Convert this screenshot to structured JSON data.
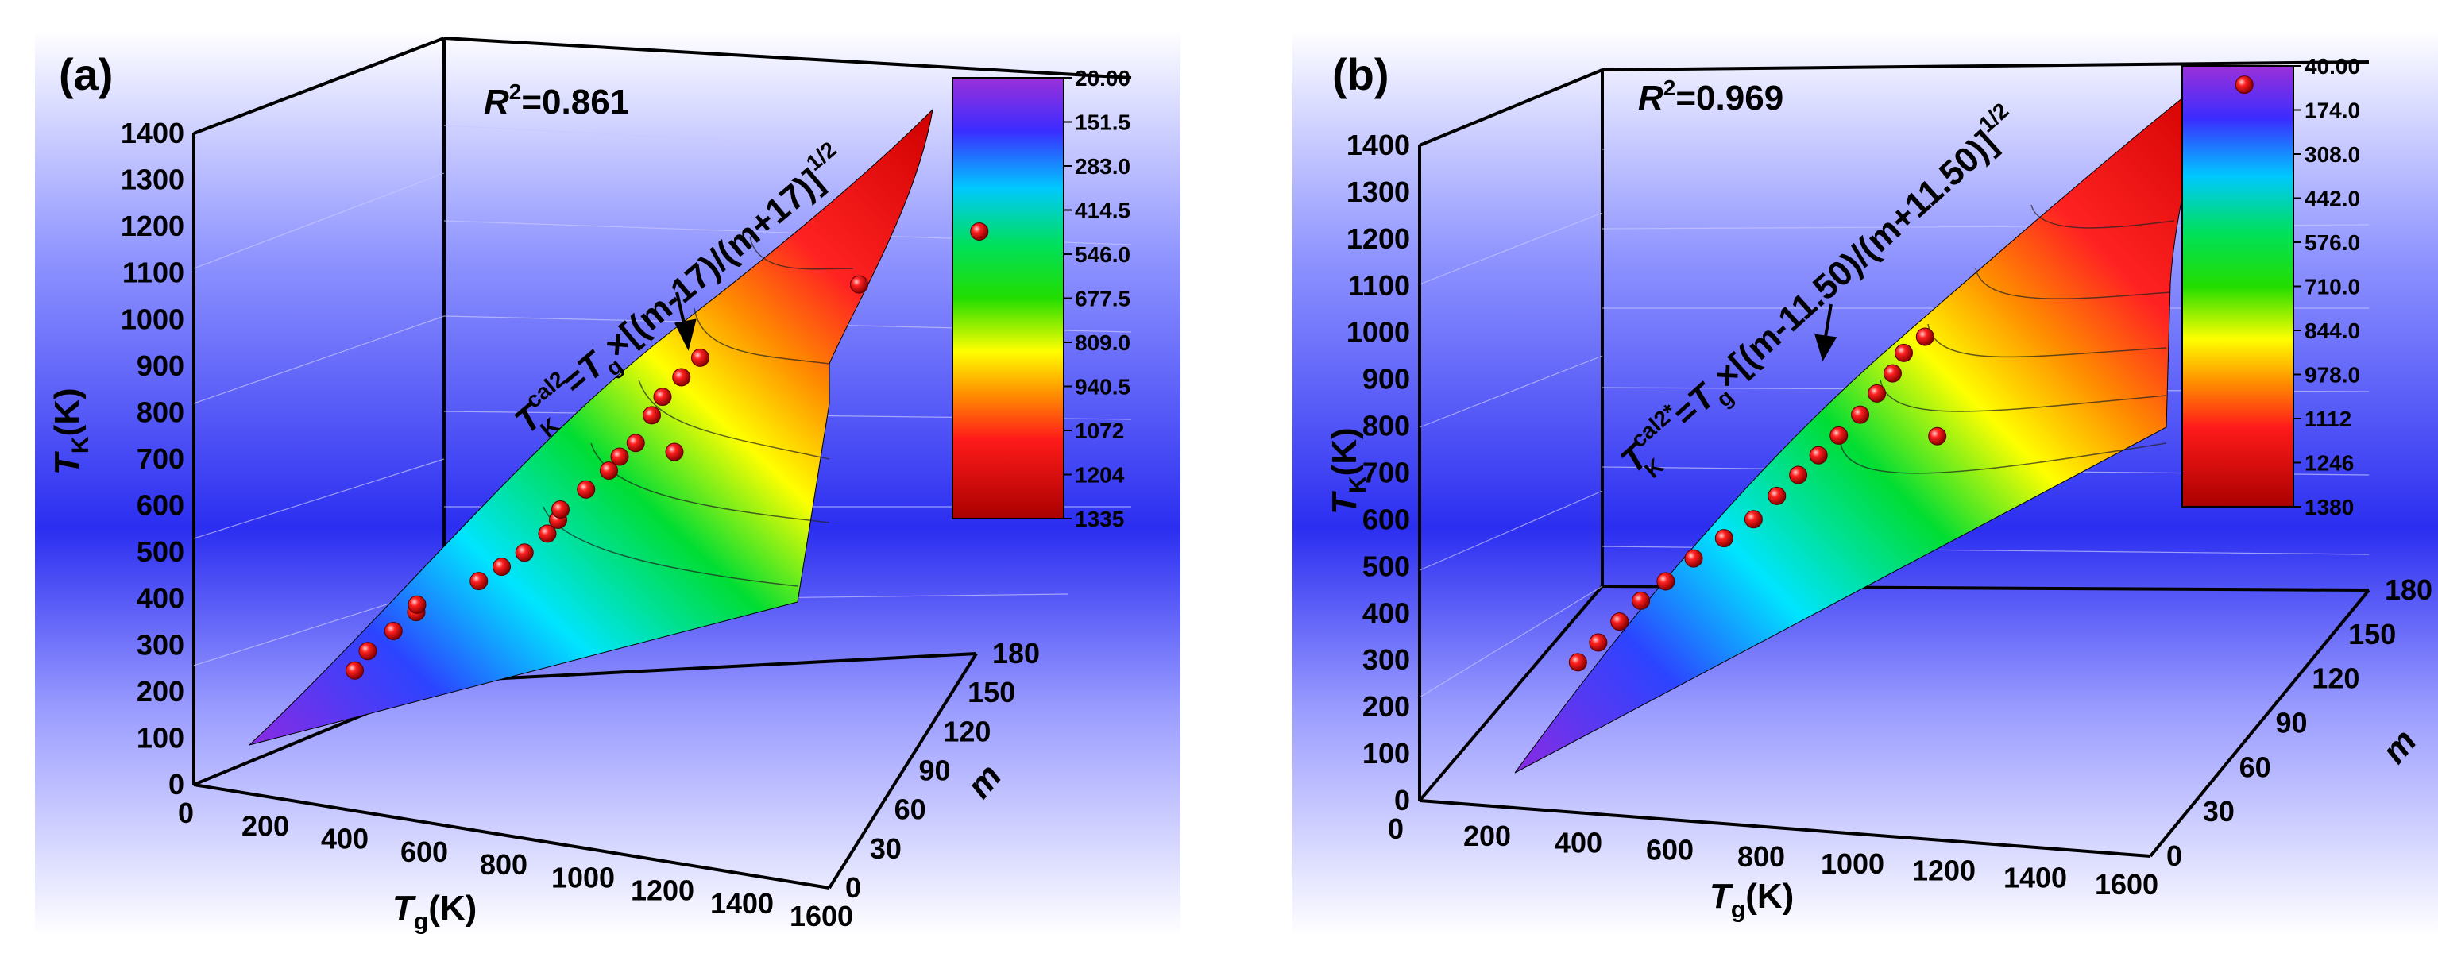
{
  "chart_data": [
    {
      "type": "surface3d",
      "panel_label": "(a)",
      "r2_label": "R",
      "r2_sup": "2",
      "r2_value": "=0.861",
      "equation": {
        "T1": "T",
        "sup": "cal2",
        "sub": "K",
        "eq": "=",
        "T2": "T",
        "g": "g",
        "body": "×[(m-17)/(m+17)]",
        "exp": "1/2"
      },
      "zlabel": {
        "main": "T",
        "sub": "K",
        "unit": "(K)"
      },
      "xlabel": {
        "main": "T",
        "sub": "g",
        "unit": "(K)"
      },
      "ylabel": "m",
      "ztick_labels": [
        "0",
        "100",
        "200",
        "300",
        "400",
        "500",
        "600",
        "700",
        "800",
        "900",
        "1000",
        "1100",
        "1200",
        "1300",
        "1400"
      ],
      "xtick_labels": [
        "0",
        "200",
        "400",
        "600",
        "800",
        "1000",
        "1200",
        "1400",
        "1600"
      ],
      "ytick_labels": [
        "0",
        "30",
        "60",
        "90",
        "120",
        "150",
        "180"
      ],
      "colorbar_labels": [
        "20.00",
        "151.5",
        "283.0",
        "414.5",
        "546.0",
        "677.5",
        "809.0",
        "940.5",
        "1072",
        "1204",
        "1335"
      ],
      "x_range": [
        0,
        1600
      ],
      "y_range": [
        0,
        180
      ],
      "z_range": [
        0,
        1400
      ],
      "surface_color_range": [
        20,
        1335
      ],
      "colormap": [
        "#8a2be2",
        "#1e3cff",
        "#00e5ff",
        "#00e000",
        "#ffff00",
        "#ff8c00",
        "#ff1a1a",
        "#b40000"
      ],
      "points": [
        {
          "tg": 300,
          "m": 30,
          "tk": 250
        },
        {
          "tg": 340,
          "m": 28,
          "tk": 300
        },
        {
          "tg": 380,
          "m": 35,
          "tk": 340
        },
        {
          "tg": 420,
          "m": 40,
          "tk": 380
        },
        {
          "tg": 450,
          "m": 32,
          "tk": 410
        },
        {
          "tg": 560,
          "m": 45,
          "tk": 460
        },
        {
          "tg": 600,
          "m": 50,
          "tk": 490
        },
        {
          "tg": 640,
          "m": 55,
          "tk": 520
        },
        {
          "tg": 680,
          "m": 60,
          "tk": 560
        },
        {
          "tg": 700,
          "m": 62,
          "tk": 590
        },
        {
          "tg": 720,
          "m": 58,
          "tk": 620
        },
        {
          "tg": 760,
          "m": 65,
          "tk": 660
        },
        {
          "tg": 800,
          "m": 70,
          "tk": 700
        },
        {
          "tg": 820,
          "m": 72,
          "tk": 730
        },
        {
          "tg": 850,
          "m": 75,
          "tk": 760
        },
        {
          "tg": 880,
          "m": 78,
          "tk": 820
        },
        {
          "tg": 900,
          "m": 80,
          "tk": 860
        },
        {
          "tg": 930,
          "m": 85,
          "tk": 900
        },
        {
          "tg": 960,
          "m": 90,
          "tk": 940
        },
        {
          "tg": 1000,
          "m": 60,
          "tk": 780
        },
        {
          "tg": 1150,
          "m": 150,
          "tk": 1050
        },
        {
          "tg": 1400,
          "m": 165,
          "tk": 1180
        }
      ]
    },
    {
      "type": "surface3d",
      "panel_label": "(b)",
      "r2_label": "R",
      "r2_sup": "2",
      "r2_value": "=0.969",
      "equation": {
        "T1": "T",
        "sup": "cal2*",
        "sub": "K",
        "eq": "=",
        "T2": "T",
        "g": "g",
        "body": "×[(m-11.50)/(m+11.50)]",
        "exp": "1/2"
      },
      "zlabel": {
        "main": "T",
        "sub": "K",
        "unit": "(K)"
      },
      "xlabel": {
        "main": "T",
        "sub": "g",
        "unit": "(K)"
      },
      "ylabel": "m",
      "ztick_labels": [
        "0",
        "100",
        "200",
        "300",
        "400",
        "500",
        "600",
        "700",
        "800",
        "900",
        "1000",
        "1100",
        "1200",
        "1300",
        "1400"
      ],
      "xtick_labels": [
        "0",
        "200",
        "400",
        "600",
        "800",
        "1000",
        "1200",
        "1400",
        "1600"
      ],
      "ytick_labels": [
        "0",
        "30",
        "60",
        "90",
        "120",
        "150",
        "180"
      ],
      "colorbar_labels": [
        "40.00",
        "174.0",
        "308.0",
        "442.0",
        "576.0",
        "710.0",
        "844.0",
        "978.0",
        "1112",
        "1246",
        "1380"
      ],
      "x_range": [
        0,
        1600
      ],
      "y_range": [
        0,
        180
      ],
      "z_range": [
        0,
        1400
      ],
      "surface_color_range": [
        40,
        1380
      ],
      "colormap": [
        "#8a2be2",
        "#1e3cff",
        "#00e5ff",
        "#00e000",
        "#ffff00",
        "#ff8c00",
        "#ff1a1a",
        "#b40000"
      ],
      "points": [
        {
          "tg": 280,
          "m": 30,
          "tk": 240
        },
        {
          "tg": 320,
          "m": 32,
          "tk": 280
        },
        {
          "tg": 360,
          "m": 35,
          "tk": 320
        },
        {
          "tg": 400,
          "m": 38,
          "tk": 360
        },
        {
          "tg": 450,
          "m": 40,
          "tk": 400
        },
        {
          "tg": 500,
          "m": 45,
          "tk": 440
        },
        {
          "tg": 560,
          "m": 48,
          "tk": 480
        },
        {
          "tg": 620,
          "m": 50,
          "tk": 520
        },
        {
          "tg": 660,
          "m": 55,
          "tk": 560
        },
        {
          "tg": 700,
          "m": 58,
          "tk": 600
        },
        {
          "tg": 740,
          "m": 60,
          "tk": 640
        },
        {
          "tg": 780,
          "m": 62,
          "tk": 680
        },
        {
          "tg": 820,
          "m": 65,
          "tk": 720
        },
        {
          "tg": 850,
          "m": 68,
          "tk": 760
        },
        {
          "tg": 880,
          "m": 70,
          "tk": 800
        },
        {
          "tg": 900,
          "m": 72,
          "tk": 840
        },
        {
          "tg": 940,
          "m": 75,
          "tk": 870
        },
        {
          "tg": 1000,
          "m": 60,
          "tk": 700
        },
        {
          "tg": 1450,
          "m": 160,
          "tk": 1230
        }
      ]
    }
  ]
}
